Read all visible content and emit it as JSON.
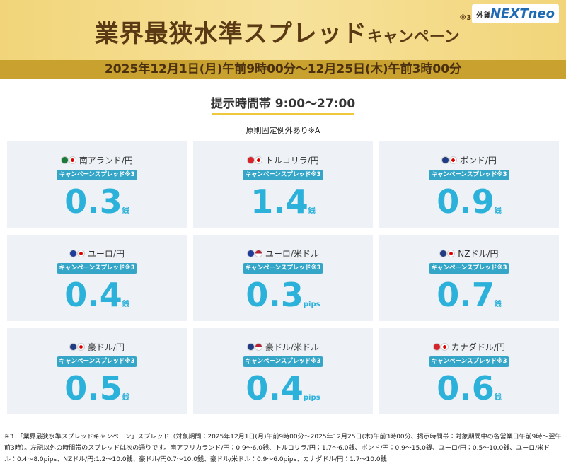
{
  "header": {
    "title": "業界最狭水準スプレッド",
    "title_small": "キャンペーン",
    "title_note": "※3",
    "logo_small": "外貨",
    "logo": "NEXTneo",
    "period": "2025年12月1日(月)午前9時00分～12月25日(木)午前3時00分"
  },
  "section": {
    "title": "提示時間帯 9:00〜27:00",
    "subtitle": "原則固定例外あり※A"
  },
  "cards": [
    {
      "pair": "南アランド/円",
      "badge": "キャンペーンスプレッド※3",
      "value": "0.3",
      "unit": "銭"
    },
    {
      "pair": "トルコリラ/円",
      "badge": "キャンペーンスプレッド※3",
      "value": "1.4",
      "unit": "銭"
    },
    {
      "pair": "ポンド/円",
      "badge": "キャンペーンスプレッド※3",
      "value": "0.9",
      "unit": "銭"
    },
    {
      "pair": "ユーロ/円",
      "badge": "キャンペーンスプレッド※3",
      "value": "0.4",
      "unit": "銭"
    },
    {
      "pair": "ユーロ/米ドル",
      "badge": "キャンペーンスプレッド※3",
      "value": "0.3",
      "unit": "pips"
    },
    {
      "pair": "NZドル/円",
      "badge": "キャンペーンスプレッド※3",
      "value": "0.7",
      "unit": "銭"
    },
    {
      "pair": "豪ドル/円",
      "badge": "キャンペーンスプレッド※3",
      "value": "0.5",
      "unit": "銭"
    },
    {
      "pair": "豪ドル/米ドル",
      "badge": "キャンペーンスプレッド※3",
      "value": "0.4",
      "unit": "pips"
    },
    {
      "pair": "カナダドル/円",
      "badge": "キャンペーンスプレッド※3",
      "value": "0.6",
      "unit": "銭"
    }
  ],
  "footnote": {
    "mark": "※3",
    "text": "「業界最狭水準スプレッドキャンペーン」スプレッド（対象期間：2025年12月1日(月)午前9時00分〜2025年12月25日(木)午前3時00分、掲示時間帯：対象期間中の各営業日午前9時〜翌午前3時）。左記以外の時間帯のスプレッドは次の通りです。南アフリカランド/円：0.9〜6.0銭、トルコリラ/円：1.7〜6.0銭、ポンド/円：0.9〜15.0銭、ユーロ/円：0.5〜10.0銭、ユーロ/米ドル：0.4〜8.0pips、NZドル/円:1.2〜10.0銭、豪ドル/円0.7〜10.0銭、豪ドル/米ドル：0.9〜6.0pips、カナダドル/円：1.7〜10.0銭"
  }
}
